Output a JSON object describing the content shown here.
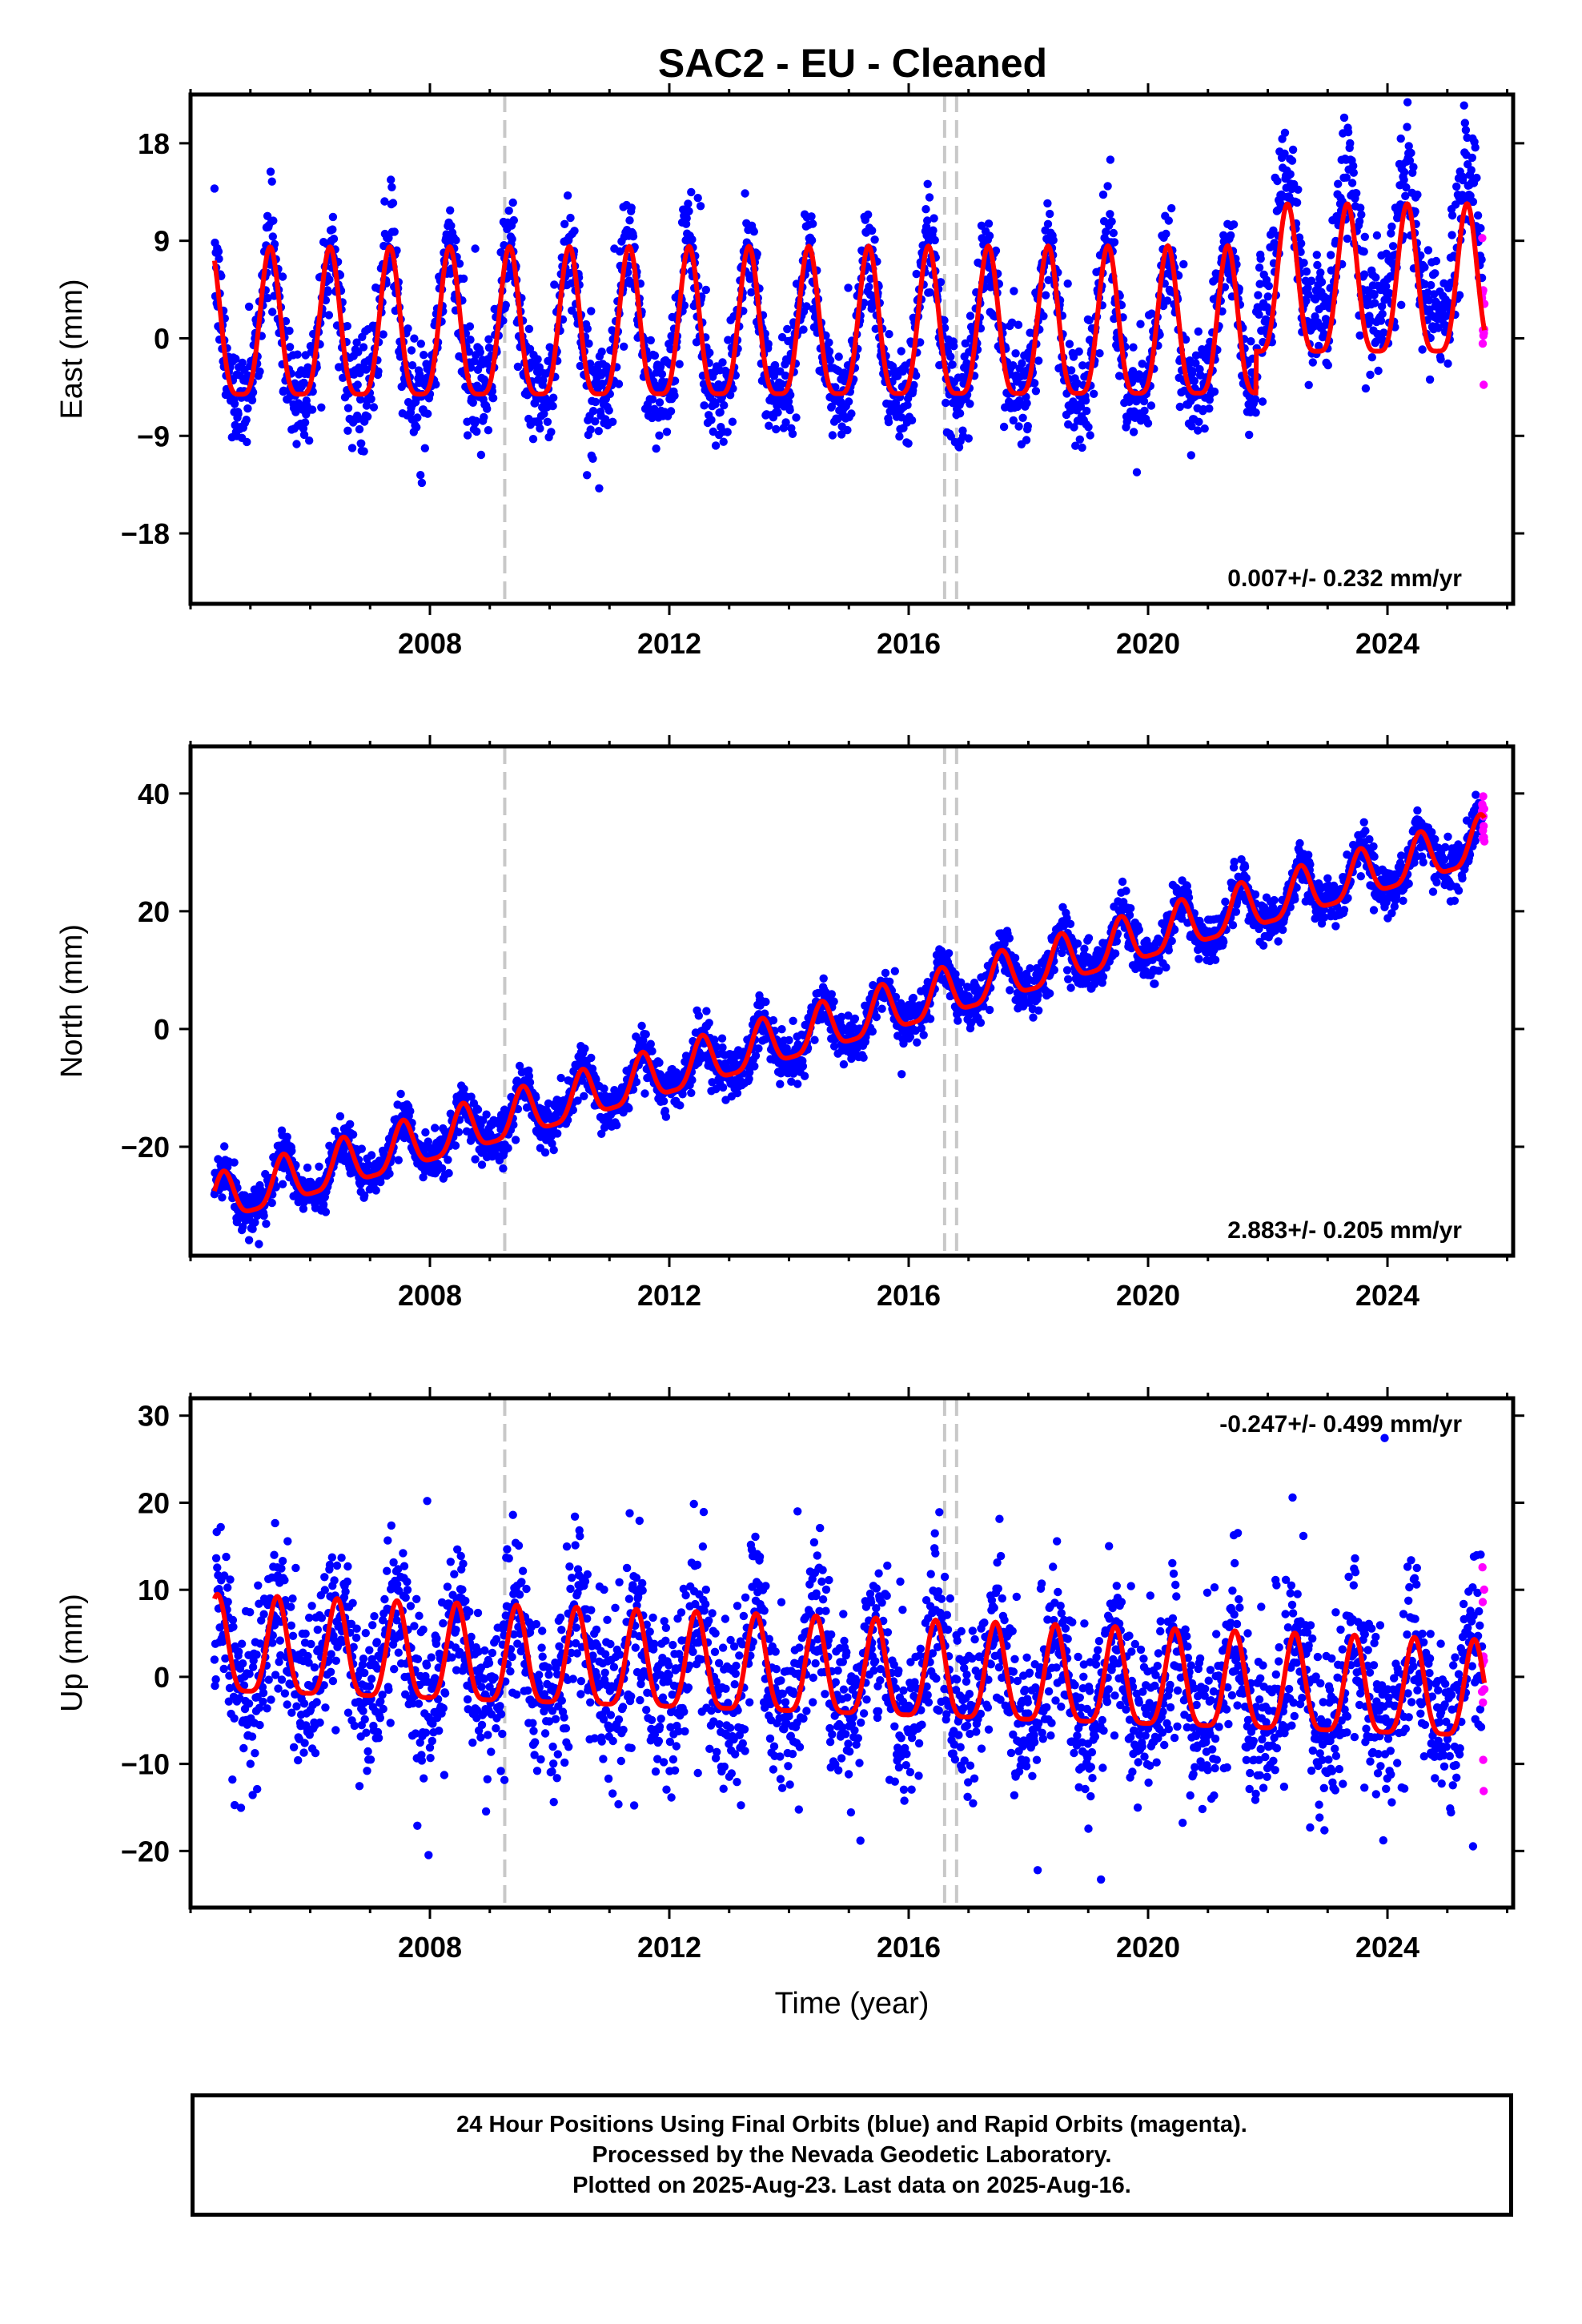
{
  "title": "SAC2  - EU - Cleaned",
  "footer": [
    "24 Hour Positions Using Final Orbits (blue) and Rapid Orbits (magenta).",
    "Processed by the Nevada Geodetic Laboratory.",
    "Plotted on 2025-Aug-23. Last data on 2025-Aug-16."
  ],
  "colors": {
    "final_orbits": "#0000ff",
    "rapid_orbits": "#ff00ff",
    "model_fit": "#ff0000",
    "equipment_change": "#c8c8c8"
  },
  "chart_data": [
    {
      "type": "scatter",
      "name": "east",
      "ylabel": "East (mm)",
      "xlabel": "",
      "rate_label": "0.007+/- 0.232 mm/yr",
      "xlim": [
        2004.0,
        2026.1
      ],
      "ylim": [
        -24.5,
        22.5
      ],
      "x_ticks": [
        2008,
        2012,
        2016,
        2020,
        2024
      ],
      "y_ticks": [
        -18,
        -9,
        0,
        9,
        18
      ],
      "trend": {
        "rate_mm_per_yr": 0.007,
        "intercept_mm": 0.0,
        "ref_year": 2015.0
      },
      "annual_amplitude_mm": 6.8,
      "annual_peak_phase": 0.33,
      "scatter_sd_mm": 2.4,
      "late_offset": {
        "from_year": 2021.8,
        "mean_mm": 7.0
      },
      "equipment_changes": [
        2009.25,
        2016.6,
        2016.8
      ],
      "data_start": 2004.4,
      "data_end": 2025.62
    },
    {
      "type": "scatter",
      "name": "north",
      "ylabel": "North (mm)",
      "xlabel": "",
      "rate_label": "2.883+/- 0.205 mm/yr",
      "xlim": [
        2004.0,
        2026.1
      ],
      "ylim": [
        -38.5,
        48.0
      ],
      "x_ticks": [
        2008,
        2012,
        2016,
        2020,
        2024
      ],
      "y_ticks": [
        -20,
        0,
        20,
        40
      ],
      "trend": {
        "rate_mm_per_yr": 2.883,
        "intercept_mm": 1.0,
        "ref_year": 2015.0
      },
      "annual_amplitude_mm": 4.0,
      "annual_peak_phase": 0.55,
      "scatter_sd_mm": 2.0,
      "equipment_changes": [
        2009.25,
        2016.6,
        2016.8
      ],
      "data_start": 2004.4,
      "data_end": 2025.62
    },
    {
      "type": "scatter",
      "name": "up",
      "ylabel": "Up (mm)",
      "xlabel": "Time (year)",
      "rate_label": "-0.247+/- 0.499 mm/yr",
      "xlim": [
        2004.0,
        2026.1
      ],
      "ylim": [
        -26.5,
        32.0
      ],
      "x_ticks": [
        2008,
        2012,
        2016,
        2020,
        2024
      ],
      "y_ticks": [
        -20,
        -10,
        0,
        10,
        20,
        30
      ],
      "trend": {
        "rate_mm_per_yr": -0.247,
        "intercept_mm": 0.0,
        "ref_year": 2015.0
      },
      "annual_amplitude_mm": 5.5,
      "annual_peak_phase": 0.45,
      "scatter_sd_mm": 4.8,
      "equipment_changes": [
        2009.25,
        2016.6,
        2016.8
      ],
      "data_start": 2004.4,
      "data_end": 2025.62
    }
  ]
}
